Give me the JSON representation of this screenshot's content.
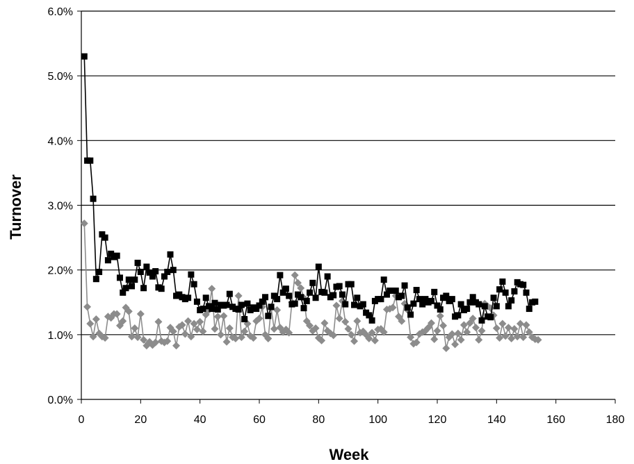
{
  "chart_data": {
    "type": "line",
    "title": "",
    "xlabel": "Week",
    "ylabel": "Turnover",
    "xlim": [
      0,
      180
    ],
    "ylim": [
      0,
      0.06
    ],
    "x_ticks": [
      "0",
      "20",
      "40",
      "60",
      "80",
      "100",
      "120",
      "140",
      "160",
      "180"
    ],
    "y_ticks": [
      "0.0%",
      "1.0%",
      "2.0%",
      "3.0%",
      "4.0%",
      "5.0%",
      "6.0%"
    ],
    "grid": "horizontal",
    "legend": "none",
    "series": [
      {
        "color": "#000000",
        "marker": "square",
        "x_start": 1,
        "values": [
          0.053,
          0.0369,
          0.0369,
          0.031,
          0.0186,
          0.0197,
          0.0255,
          0.025,
          0.0215,
          0.0225,
          0.022,
          0.0222,
          0.0188,
          0.0165,
          0.0172,
          0.0185,
          0.0175,
          0.0185,
          0.0211,
          0.0197,
          0.0172,
          0.0205,
          0.0196,
          0.019,
          0.0198,
          0.0173,
          0.0171,
          0.019,
          0.0197,
          0.0224,
          0.02,
          0.016,
          0.0162,
          0.0158,
          0.0155,
          0.0157,
          0.0193,
          0.0178,
          0.0151,
          0.0138,
          0.014,
          0.0157,
          0.0144,
          0.014,
          0.0149,
          0.0139,
          0.0146,
          0.0145,
          0.0146,
          0.0163,
          0.0143,
          0.014,
          0.0139,
          0.0146,
          0.0124,
          0.0148,
          0.0138,
          0.0142,
          0.014,
          0.0145,
          0.0151,
          0.0158,
          0.0129,
          0.0143,
          0.016,
          0.0155,
          0.0192,
          0.0165,
          0.0171,
          0.016,
          0.0147,
          0.0148,
          0.0162,
          0.0158,
          0.0141,
          0.0152,
          0.0165,
          0.018,
          0.0157,
          0.0205,
          0.0166,
          0.0165,
          0.019,
          0.0158,
          0.0161,
          0.0174,
          0.0175,
          0.0162,
          0.0147,
          0.0178,
          0.0178,
          0.0146,
          0.0157,
          0.0144,
          0.0147,
          0.0134,
          0.013,
          0.0122,
          0.0152,
          0.0155,
          0.0155,
          0.0185,
          0.0162,
          0.0168,
          0.0168,
          0.0168,
          0.0158,
          0.016,
          0.0176,
          0.0142,
          0.0131,
          0.0148,
          0.0169,
          0.0155,
          0.0147,
          0.0155,
          0.015,
          0.0152,
          0.0166,
          0.0145,
          0.0139,
          0.0157,
          0.016,
          0.0152,
          0.0155,
          0.0128,
          0.013,
          0.0147,
          0.0138,
          0.014,
          0.015,
          0.0158,
          0.015,
          0.0147,
          0.0122,
          0.0144,
          0.0128,
          0.0127,
          0.0157,
          0.0144,
          0.017,
          0.0182,
          0.0165,
          0.0144,
          0.0153,
          0.0167,
          0.0181,
          0.0178,
          0.0177,
          0.0165,
          0.014,
          0.015,
          0.0151
        ]
      },
      {
        "color": "#8c8c8c",
        "marker": "diamond",
        "x_start": 1,
        "values": [
          0.0272,
          0.0143,
          0.0117,
          0.0097,
          0.0124,
          0.0102,
          0.0097,
          0.0095,
          0.0128,
          0.0126,
          0.0132,
          0.0132,
          0.0114,
          0.0121,
          0.0142,
          0.0136,
          0.0097,
          0.011,
          0.0096,
          0.0132,
          0.0092,
          0.0083,
          0.0089,
          0.0084,
          0.0088,
          0.012,
          0.009,
          0.0088,
          0.009,
          0.0111,
          0.0105,
          0.0083,
          0.0112,
          0.0115,
          0.0101,
          0.0121,
          0.0097,
          0.0117,
          0.0108,
          0.012,
          0.0105,
          0.0131,
          0.0138,
          0.0171,
          0.0109,
          0.0128,
          0.01,
          0.0129,
          0.0089,
          0.011,
          0.0096,
          0.0094,
          0.016,
          0.0096,
          0.0105,
          0.0117,
          0.0098,
          0.0095,
          0.0121,
          0.0125,
          0.0143,
          0.01,
          0.0094,
          0.0141,
          0.0109,
          0.0138,
          0.0111,
          0.0104,
          0.0108,
          0.0103,
          0.015,
          0.0192,
          0.018,
          0.0172,
          0.0157,
          0.0121,
          0.0114,
          0.0106,
          0.011,
          0.0095,
          0.0091,
          0.0118,
          0.0106,
          0.0102,
          0.0099,
          0.0145,
          0.0125,
          0.0152,
          0.012,
          0.0109,
          0.01,
          0.009,
          0.0121,
          0.0103,
          0.0105,
          0.01,
          0.0094,
          0.0103,
          0.0091,
          0.0108,
          0.0109,
          0.0104,
          0.0139,
          0.014,
          0.0142,
          0.016,
          0.0128,
          0.0121,
          0.0148,
          0.0138,
          0.0096,
          0.0086,
          0.0088,
          0.0101,
          0.0104,
          0.0106,
          0.0111,
          0.0118,
          0.0093,
          0.0106,
          0.0129,
          0.0114,
          0.0079,
          0.0096,
          0.0101,
          0.0085,
          0.0102,
          0.0092,
          0.0115,
          0.0104,
          0.0118,
          0.0125,
          0.0111,
          0.0092,
          0.0106,
          0.0148,
          0.0144,
          0.0141,
          0.013,
          0.011,
          0.0095,
          0.0117,
          0.0098,
          0.0111,
          0.0094,
          0.0109,
          0.0097,
          0.0117,
          0.0096,
          0.0115,
          0.0104,
          0.0096,
          0.0093,
          0.0092
        ]
      }
    ]
  }
}
